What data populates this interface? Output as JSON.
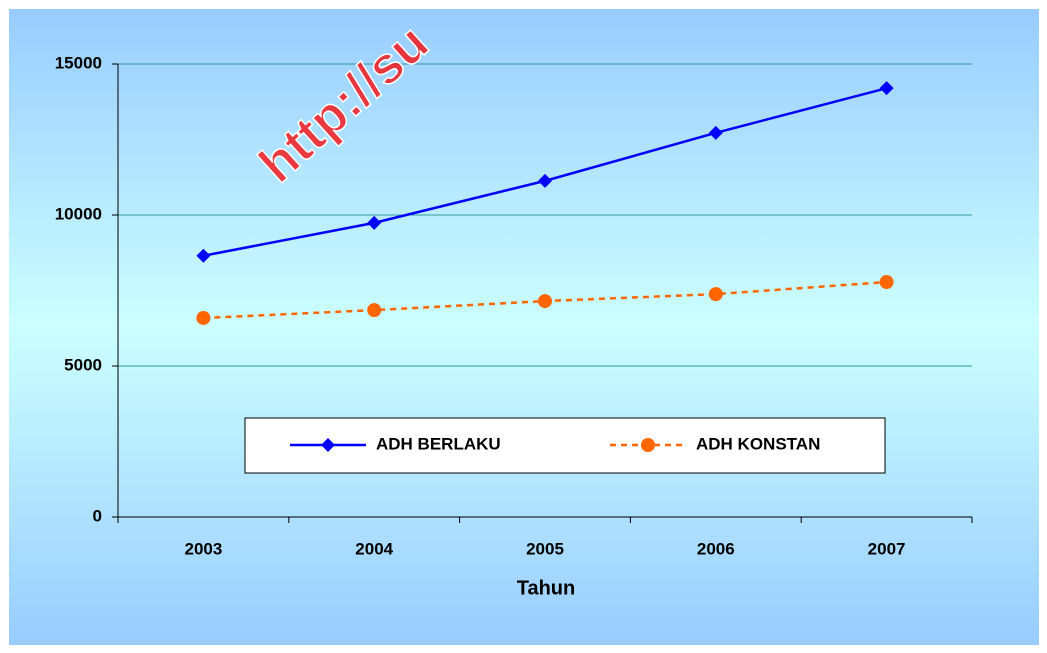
{
  "chart_data": {
    "type": "line",
    "categories": [
      "2003",
      "2004",
      "2005",
      "2006",
      "2007"
    ],
    "series": [
      {
        "name": "ADH BERLAKU",
        "color": "#0000ff",
        "marker": "diamond",
        "dash": "solid",
        "values": [
          8650,
          9740,
          11130,
          12720,
          14200
        ]
      },
      {
        "name": "ADH KONSTAN",
        "color": "#ff6600",
        "marker": "circle",
        "dash": "dashed",
        "values": [
          6590,
          6850,
          7150,
          7380,
          7780
        ]
      }
    ],
    "xlabel": "Tahun",
    "ylim": [
      0,
      15000
    ],
    "yticks": [
      0,
      5000,
      10000,
      15000
    ],
    "grid": true,
    "annotations": [
      "http://su"
    ]
  }
}
